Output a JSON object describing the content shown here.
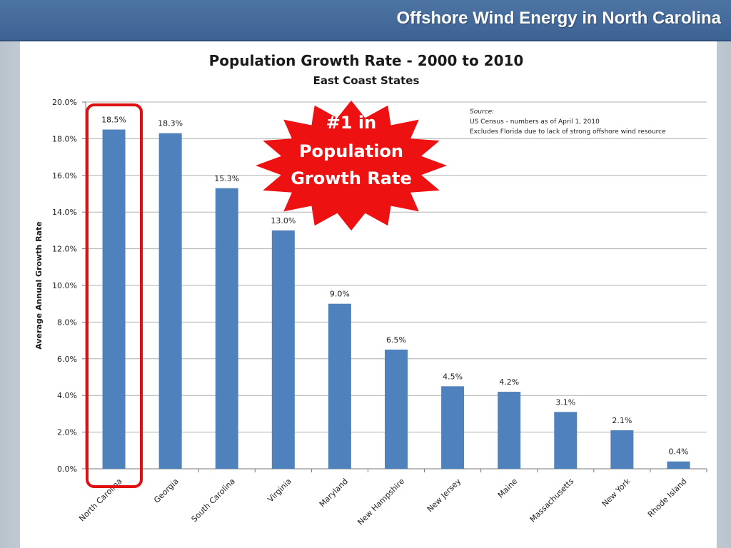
{
  "header": {
    "title": "Offshore Wind Energy in North Carolina"
  },
  "colors": {
    "bar": "#4f81bd",
    "highlight": "#e01010",
    "burst": "#ee1111",
    "grid": "#b0b0b0"
  },
  "chart_data": {
    "type": "bar",
    "title": "Population Growth Rate - 2000 to 2010",
    "subtitle": "East Coast States",
    "ylabel": "Average Annual Growth Rate",
    "ylim": [
      0,
      20
    ],
    "yticks": [
      "0.0%",
      "2.0%",
      "4.0%",
      "6.0%",
      "8.0%",
      "10.0%",
      "12.0%",
      "14.0%",
      "16.0%",
      "18.0%",
      "20.0%"
    ],
    "grid": true,
    "categories": [
      "North Carolina",
      "Georgia",
      "South Carolina",
      "Virginia",
      "Maryland",
      "New Hampshire",
      "New Jersey",
      "Maine",
      "Massachusetts",
      "New York",
      "Rhode Island"
    ],
    "values": [
      18.5,
      18.3,
      15.3,
      13.0,
      9.0,
      6.5,
      4.5,
      4.2,
      3.1,
      2.1,
      0.4
    ],
    "data_labels": [
      "18.5%",
      "18.3%",
      "15.3%",
      "13.0%",
      "9.0%",
      "6.5%",
      "4.5%",
      "4.2%",
      "3.1%",
      "2.1%",
      "0.4%"
    ],
    "highlighted_category": "North Carolina",
    "source_note": {
      "heading": "Source:",
      "lines": [
        "US Census - numbers as of April 1, 2010",
        "Excludes Florida due to lack of strong offshore wind resource"
      ]
    },
    "callout": {
      "lines": [
        "#1 in",
        "Population",
        "Growth Rate"
      ]
    }
  }
}
